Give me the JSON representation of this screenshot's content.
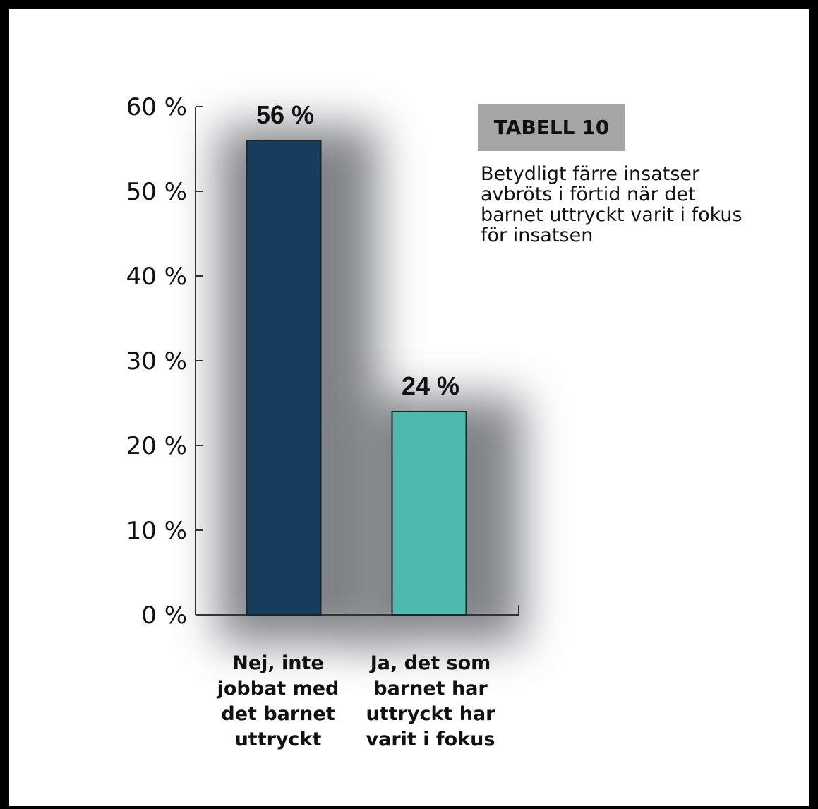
{
  "chart_data": {
    "type": "bar",
    "categories": [
      [
        "Nej, inte",
        "jobbat med",
        "det barnet",
        "uttryckt"
      ],
      [
        "Ja, det som",
        "barnet har",
        "uttryckt har",
        "varit i fokus"
      ]
    ],
    "values": [
      56,
      24
    ],
    "data_labels": [
      "56 %",
      "24 %"
    ],
    "bar_colors": [
      "#153e5d",
      "#4eb9ad"
    ],
    "ylim": [
      0,
      60
    ],
    "yticks": [
      0,
      10,
      20,
      30,
      40,
      50,
      60
    ],
    "ytick_labels": [
      "0 %",
      "10 %",
      "20 %",
      "30 %",
      "40 %",
      "50 %",
      "60 %"
    ],
    "grid": false,
    "title": "",
    "xlabel": "",
    "ylabel": ""
  },
  "panel": {
    "title": "TABELL 10",
    "description": "Betydligt färre insatser avbröts i förtid när det barnet uttryckt varit i fokus för insatsen",
    "title_bg": "#a6a6a6"
  }
}
